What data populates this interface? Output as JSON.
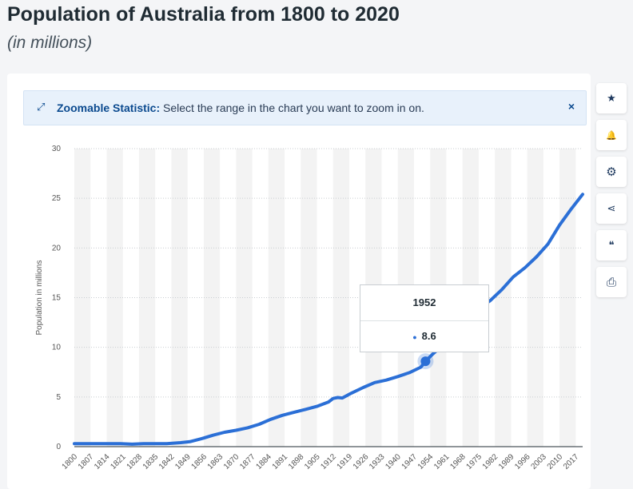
{
  "title": "Population of Australia from 1800 to 2020",
  "subtitle": "(in millions)",
  "banner": {
    "icon": "expand-arrows-icon",
    "bold": "Zoomable Statistic:",
    "text": " Select the range in the chart you want to zoom in on.",
    "close": "×"
  },
  "sidebar": {
    "buttons": [
      {
        "name": "star-icon",
        "glyph": "★"
      },
      {
        "name": "bell-icon",
        "glyph": "🔔"
      },
      {
        "name": "gear-icon",
        "glyph": "⚙"
      },
      {
        "name": "share-icon",
        "glyph": "⋖"
      },
      {
        "name": "quote-icon",
        "glyph": "❝"
      },
      {
        "name": "print-icon",
        "glyph": "⎙"
      }
    ]
  },
  "tooltip": {
    "year": "1952",
    "value": "8.6"
  },
  "colors": {
    "line": "#2b6fd6",
    "band": "#f3f3f3",
    "grid": "#c9cdd1"
  },
  "chart_data": {
    "type": "line",
    "ylabel": "Population in millions",
    "xlabel": "",
    "ylim": [
      0,
      30
    ],
    "yticks": [
      0,
      5,
      10,
      15,
      20,
      25,
      30
    ],
    "xlim": [
      1800,
      2020
    ],
    "xticks": [
      1800,
      1807,
      1814,
      1821,
      1828,
      1835,
      1842,
      1849,
      1856,
      1863,
      1870,
      1877,
      1884,
      1891,
      1898,
      1905,
      1912,
      1919,
      1926,
      1933,
      1940,
      1947,
      1954,
      1961,
      1968,
      1975,
      1982,
      1989,
      1996,
      2003,
      2010,
      2017
    ],
    "highlight": {
      "x": 1952,
      "y": 8.6
    },
    "series": [
      {
        "x": [
          1800,
          1810,
          1820,
          1825,
          1830,
          1840,
          1846,
          1850,
          1855,
          1860,
          1865,
          1870,
          1875,
          1880,
          1885,
          1890,
          1895,
          1900,
          1905,
          1910,
          1912,
          1914,
          1916,
          1918,
          1920,
          1925,
          1930,
          1935,
          1940,
          1945,
          1950,
          1952,
          1955,
          1960,
          1965,
          1970,
          1975,
          1980,
          1985,
          1990,
          1995,
          2000,
          2005,
          2010,
          2015,
          2020
        ],
        "y": [
          0.3,
          0.3,
          0.3,
          0.25,
          0.3,
          0.3,
          0.4,
          0.5,
          0.8,
          1.15,
          1.45,
          1.65,
          1.9,
          2.25,
          2.75,
          3.15,
          3.45,
          3.75,
          4.05,
          4.5,
          4.85,
          4.95,
          4.9,
          5.15,
          5.4,
          5.95,
          6.45,
          6.7,
          7.05,
          7.45,
          8.0,
          8.6,
          9.3,
          10.3,
          11.4,
          12.5,
          13.9,
          14.7,
          15.8,
          17.1,
          18.0,
          19.1,
          20.4,
          22.3,
          23.9,
          25.4
        ]
      }
    ]
  }
}
